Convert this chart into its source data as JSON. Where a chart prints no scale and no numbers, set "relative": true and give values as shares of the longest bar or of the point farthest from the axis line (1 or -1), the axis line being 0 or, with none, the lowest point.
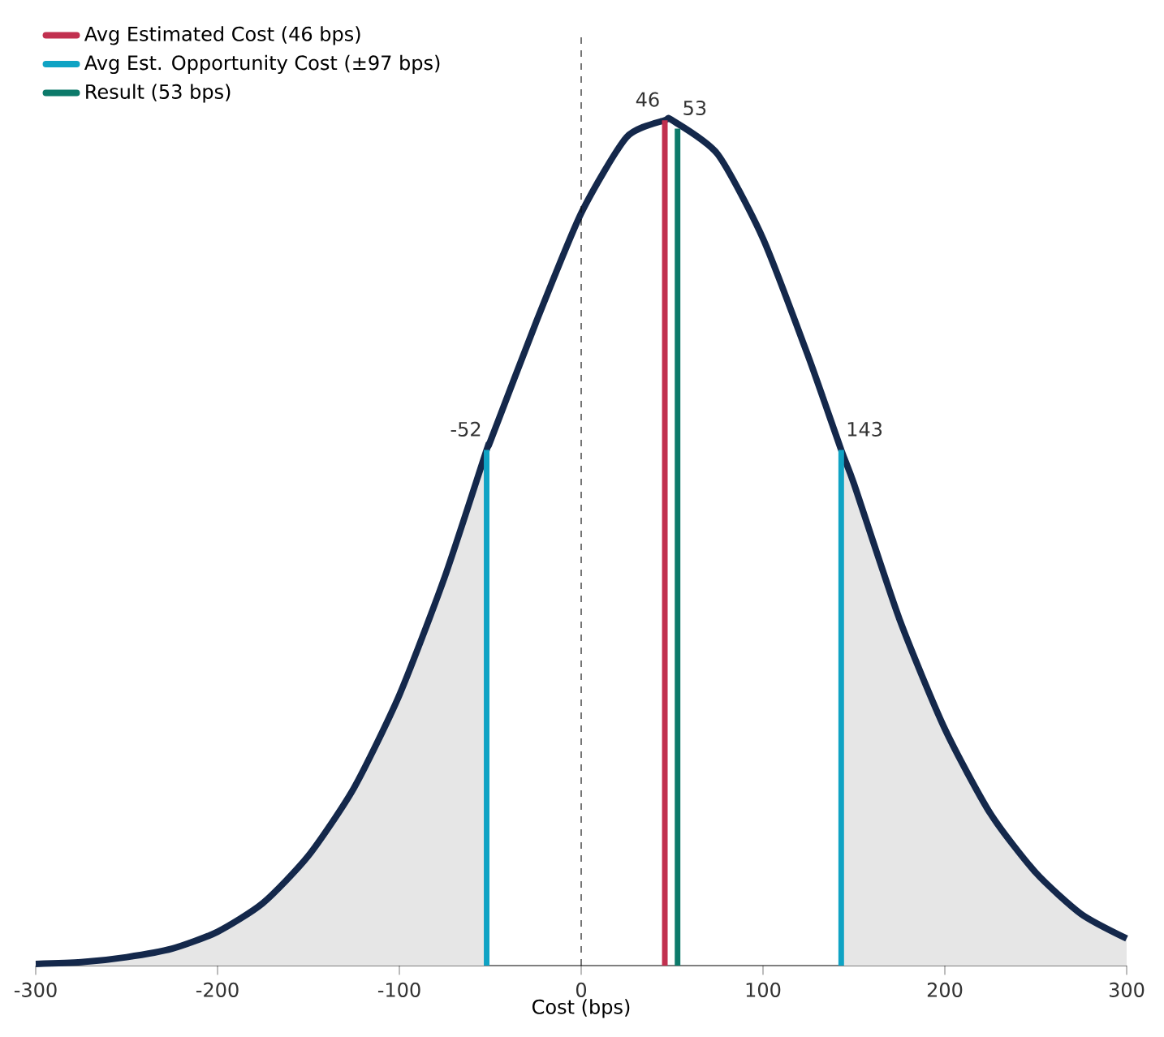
{
  "chart_data": {
    "type": "line",
    "relative": true,
    "xlabel": "Cost (bps)",
    "xlim": [
      -300,
      300
    ],
    "xticks": [
      -300,
      -200,
      -100,
      0,
      100,
      200,
      300
    ],
    "grid": false,
    "legend": "top left",
    "marker": "none",
    "series": [
      {
        "type": "area",
        "color": "#e6e6e6",
        "x": [
          -300,
          -275,
          -250,
          -225,
          -200,
          -175,
          -150,
          -125,
          -100,
          -75,
          -52
        ],
        "values": [
          0.002,
          0.004,
          0.01,
          0.02,
          0.04,
          0.074,
          0.13,
          0.21,
          0.32,
          0.46,
          0.61
        ]
      },
      {
        "type": "area",
        "color": "#e6e6e6",
        "x": [
          143,
          150,
          175,
          200,
          225,
          250,
          275,
          300
        ],
        "values": [
          0.61,
          0.57,
          0.41,
          0.28,
          0.18,
          0.11,
          0.061,
          0.032
        ]
      },
      {
        "color": "#14284b",
        "x": [
          -300,
          -275,
          -250,
          -225,
          -200,
          -175,
          -150,
          -125,
          -100,
          -75,
          -52,
          -50,
          -25,
          0,
          25,
          46,
          50,
          75,
          100,
          125,
          143,
          150,
          175,
          200,
          225,
          250,
          275,
          300
        ],
        "values": [
          0.002,
          0.004,
          0.01,
          0.02,
          0.04,
          0.074,
          0.13,
          0.21,
          0.32,
          0.46,
          0.61,
          0.62,
          0.76,
          0.89,
          0.98,
          1,
          1,
          0.96,
          0.86,
          0.72,
          0.61,
          0.57,
          0.41,
          0.28,
          0.18,
          0.11,
          0.061,
          0.032
        ]
      },
      {
        "name": "Avg Estimated Cost (46 bps)",
        "color": "#c1304f",
        "x": [
          46,
          46
        ],
        "values": [
          0,
          1
        ]
      },
      {
        "name": "Avg Est. Opportunity Cost (±97 bps)",
        "color": "#0fa3c4",
        "x": [
          -52,
          -52,
          45,
          143,
          143
        ],
        "values": [
          0,
          0.61,
          null,
          0,
          0.61
        ]
      },
      {
        "name": "Result (53 bps)",
        "color": "#0c7a6a",
        "x": [
          53,
          53
        ],
        "values": [
          0,
          0.99
        ]
      }
    ],
    "ref_lines": [
      {
        "axis": "x",
        "value": 0,
        "color": "#000000",
        "line_style": "dashed"
      }
    ],
    "annotations": [
      {
        "text": "46",
        "x": 46,
        "y": 1
      },
      {
        "text": "53",
        "x": 53,
        "y": 0.99
      },
      {
        "text": "-52",
        "x": -52,
        "y": 0.61
      },
      {
        "text": "143",
        "x": 143,
        "y": 0.61
      }
    ]
  }
}
